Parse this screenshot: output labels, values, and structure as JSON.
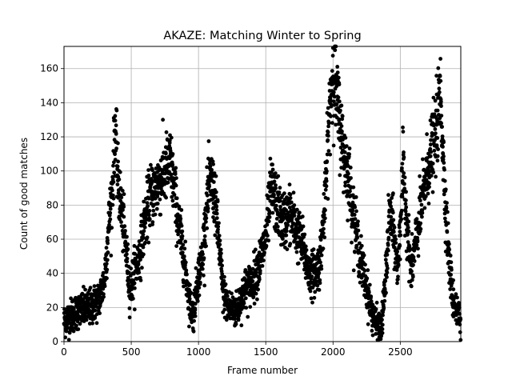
{
  "chart_data": {
    "type": "scatter",
    "title": "AKAZE: Matching Winter to Spring",
    "xlabel": "Frame number",
    "ylabel": "Count of good matches",
    "xlim": [
      0,
      2950
    ],
    "ylim": [
      0,
      173
    ],
    "xticks": [
      0,
      500,
      1000,
      1500,
      2000,
      2500
    ],
    "yticks": [
      0,
      20,
      40,
      60,
      80,
      100,
      120,
      140,
      160
    ],
    "xtick_labels": [
      "0",
      "500",
      "1000",
      "1500",
      "2000",
      "2500"
    ],
    "ytick_labels": [
      "0",
      "20",
      "40",
      "60",
      "80",
      "100",
      "120",
      "140",
      "160"
    ],
    "grid": true,
    "marker_color": "#000000",
    "trend": [
      [
        0,
        12
      ],
      [
        100,
        18
      ],
      [
        200,
        20
      ],
      [
        260,
        25
      ],
      [
        300,
        35
      ],
      [
        330,
        65
      ],
      [
        360,
        90
      ],
      [
        380,
        125
      ],
      [
        400,
        95
      ],
      [
        430,
        75
      ],
      [
        460,
        55
      ],
      [
        490,
        30
      ],
      [
        520,
        40
      ],
      [
        560,
        50
      ],
      [
        600,
        70
      ],
      [
        640,
        85
      ],
      [
        700,
        92
      ],
      [
        750,
        100
      ],
      [
        790,
        105
      ],
      [
        820,
        90
      ],
      [
        850,
        70
      ],
      [
        890,
        50
      ],
      [
        930,
        25
      ],
      [
        960,
        15
      ],
      [
        990,
        35
      ],
      [
        1030,
        50
      ],
      [
        1060,
        80
      ],
      [
        1090,
        95
      ],
      [
        1120,
        85
      ],
      [
        1150,
        60
      ],
      [
        1180,
        30
      ],
      [
        1220,
        20
      ],
      [
        1280,
        18
      ],
      [
        1340,
        30
      ],
      [
        1400,
        35
      ],
      [
        1450,
        45
      ],
      [
        1500,
        60
      ],
      [
        1540,
        90
      ],
      [
        1580,
        80
      ],
      [
        1630,
        70
      ],
      [
        1680,
        75
      ],
      [
        1730,
        65
      ],
      [
        1780,
        55
      ],
      [
        1820,
        40
      ],
      [
        1860,
        40
      ],
      [
        1900,
        45
      ],
      [
        1940,
        80
      ],
      [
        1970,
        130
      ],
      [
        2000,
        160
      ],
      [
        2040,
        135
      ],
      [
        2080,
        110
      ],
      [
        2120,
        95
      ],
      [
        2160,
        70
      ],
      [
        2200,
        50
      ],
      [
        2240,
        35
      ],
      [
        2280,
        20
      ],
      [
        2320,
        10
      ],
      [
        2360,
        8
      ],
      [
        2390,
        35
      ],
      [
        2420,
        75
      ],
      [
        2450,
        65
      ],
      [
        2480,
        40
      ],
      [
        2520,
        100
      ],
      [
        2550,
        70
      ],
      [
        2580,
        40
      ],
      [
        2610,
        55
      ],
      [
        2650,
        75
      ],
      [
        2700,
        100
      ],
      [
        2760,
        120
      ],
      [
        2800,
        145
      ],
      [
        2830,
        90
      ],
      [
        2860,
        50
      ],
      [
        2890,
        25
      ],
      [
        2950,
        12
      ]
    ],
    "scatter_sd": 7,
    "n_points": 2950
  }
}
